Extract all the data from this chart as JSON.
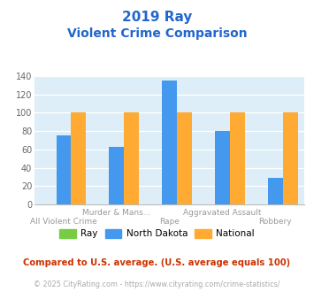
{
  "title_line1": "2019 Ray",
  "title_line2": "Violent Crime Comparison",
  "categories": [
    "All Violent Crime",
    "Murder & Mans...",
    "Rape",
    "Aggravated Assault",
    "Robbery"
  ],
  "x_labels_top": [
    "",
    "Murder & Mans...",
    "",
    "Aggravated Assault",
    ""
  ],
  "x_labels_bottom": [
    "All Violent Crime",
    "",
    "Rape",
    "",
    "Robbery"
  ],
  "ray_values": [
    0,
    0,
    0,
    0,
    0
  ],
  "nd_values": [
    75,
    63,
    135,
    80,
    29
  ],
  "national_values": [
    100,
    100,
    100,
    100,
    100
  ],
  "ray_color": "#77cc44",
  "nd_color": "#4499ee",
  "national_color": "#ffaa33",
  "ylim": [
    0,
    140
  ],
  "yticks": [
    0,
    20,
    40,
    60,
    80,
    100,
    120,
    140
  ],
  "title_color": "#2266cc",
  "bg_color": "#ddeef8",
  "footer_text": "Compared to U.S. average. (U.S. average equals 100)",
  "copyright_text": "© 2025 CityRating.com - https://www.cityrating.com/crime-statistics/",
  "legend_labels": [
    "Ray",
    "North Dakota",
    "National"
  ],
  "title_fontsize": 11,
  "subtitle_fontsize": 10,
  "bar_width": 0.28
}
